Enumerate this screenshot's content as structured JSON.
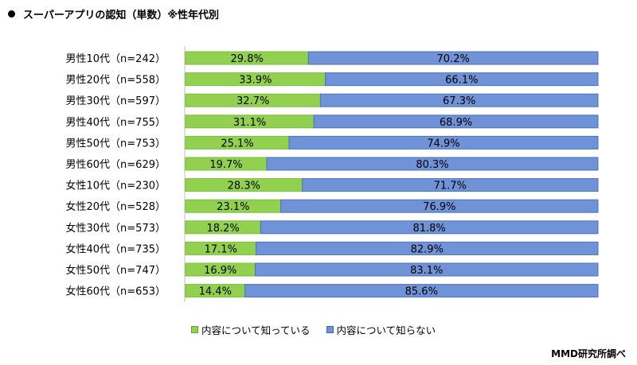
{
  "title": "スーパーアプリの認知（単数）※性年代別",
  "source": "MMD研究所調べ",
  "chart_data": {
    "type": "bar",
    "stacked": true,
    "orientation": "horizontal",
    "title": "スーパーアプリの認知（単数）※性年代別",
    "categories": [
      "男性10代（n=242）",
      "男性20代（n=558）",
      "男性30代（n=597）",
      "男性40代（n=755）",
      "男性50代（n=753）",
      "男性60代（n=629）",
      "女性10代（n=230）",
      "女性20代（n=528）",
      "女性30代（n=573）",
      "女性40代（n=735）",
      "女性50代（n=747）",
      "女性60代（n=653）"
    ],
    "series": [
      {
        "name": "内容について知っている",
        "color": "#92d050",
        "values": [
          29.8,
          33.9,
          32.7,
          31.1,
          25.1,
          19.7,
          28.3,
          23.1,
          18.2,
          17.1,
          16.9,
          14.4
        ]
      },
      {
        "name": "内容について知らない",
        "color": "#6f93d6",
        "values": [
          70.2,
          66.1,
          67.3,
          68.9,
          74.9,
          80.3,
          71.7,
          76.9,
          81.8,
          82.9,
          83.1,
          85.6
        ]
      }
    ],
    "xlim": [
      0,
      100
    ],
    "legend": "bottom"
  }
}
